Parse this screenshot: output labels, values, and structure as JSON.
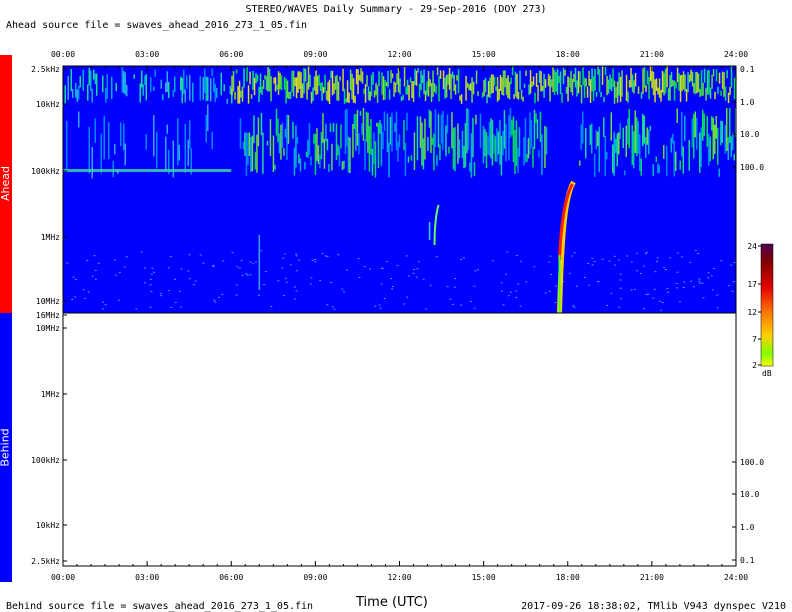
{
  "header": {
    "title": "STEREO/WAVES Daily Summary - 29-Sep-2016 (DOY 273)",
    "ahead_source": "Ahead source file = swaves_ahead_2016_273_1_05.fin",
    "behind_source": "Behind source file = swaves_ahead_2016_273_1_05.fin",
    "timestamp": "2017-09-26 18:38:02, TMlib V943 dynspec V210"
  },
  "sidebar": {
    "ahead_label": "Ahead",
    "behind_label": "Behind"
  },
  "chart_data": {
    "type": "heatmap",
    "xlabel": "Time (UTC)",
    "x_ticks": [
      "00:00",
      "03:00",
      "06:00",
      "09:00",
      "12:00",
      "15:00",
      "18:00",
      "21:00",
      "24:00"
    ],
    "xlim_hours": [
      0,
      24
    ],
    "panels": [
      {
        "name": "Ahead",
        "freq_ticks_left": [
          "2.5kHz",
          "10kHz",
          "100kHz",
          "1MHz",
          "10MHz",
          "16MHz"
        ],
        "right_ticks": [
          "0.1",
          "1.0",
          "10.0",
          "100.0"
        ],
        "has_data": true,
        "events": [
          {
            "time_hours": 17.85,
            "freq_top_kHz": 140,
            "freq_bottom_MHz": 16,
            "type": "radio-burst"
          },
          {
            "time_hours": 13.25,
            "freq_top_kHz": 300,
            "freq_bottom_MHz": 1.2,
            "type": "faint-burst"
          }
        ]
      },
      {
        "name": "Behind",
        "freq_ticks_left": [
          "10MHz",
          "1MHz",
          "100kHz",
          "10kHz",
          "2.5kHz"
        ],
        "right_ticks": [
          "100.0",
          "10.0",
          "1.0",
          "0.1"
        ],
        "has_data": false
      }
    ],
    "colorbar": {
      "ticks": [
        "24",
        "17",
        "12",
        "7",
        "2"
      ],
      "unit": "dB",
      "range": [
        2,
        24
      ]
    }
  }
}
